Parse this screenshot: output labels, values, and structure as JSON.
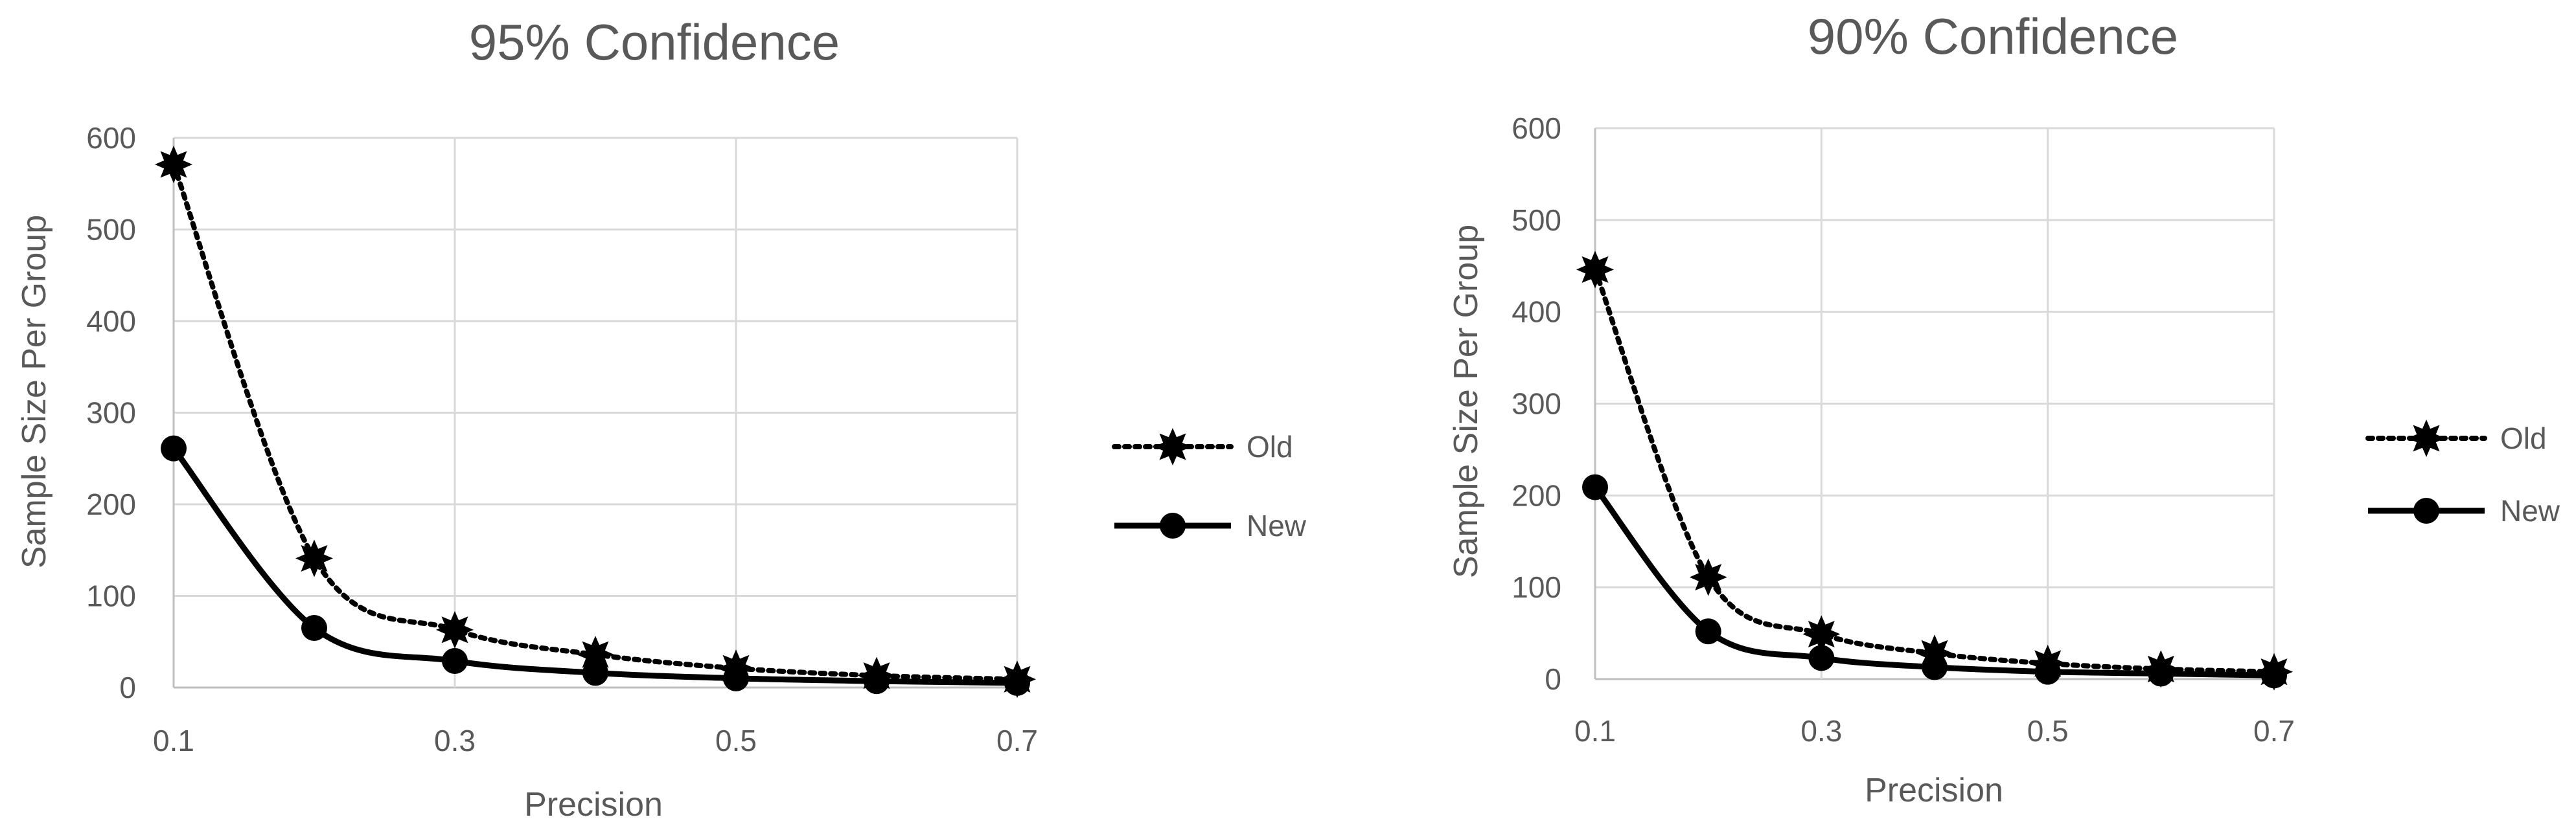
{
  "chart_data": [
    {
      "type": "line",
      "title": "95% Confidence",
      "xlabel": "Precision",
      "ylabel": "Sample Size Per Group",
      "x": [
        0.1,
        0.2,
        0.3,
        0.4,
        0.5,
        0.6,
        0.7
      ],
      "x_tick_labels": [
        "0.1",
        "0.3",
        "0.5",
        "0.7"
      ],
      "xlim": [
        0.1,
        0.7
      ],
      "y_tick_labels": [
        "0",
        "100",
        "200",
        "300",
        "400",
        "500",
        "600"
      ],
      "ylim": [
        0,
        600
      ],
      "grid": true,
      "smooth": true,
      "legend_position": "right",
      "series": [
        {
          "name": "Old",
          "line_style": "dotted",
          "marker": "star",
          "color": "#000000",
          "values": [
            571,
            141,
            63,
            36,
            21,
            13,
            9
          ]
        },
        {
          "name": "New",
          "line_style": "solid",
          "marker": "circle",
          "color": "#000000",
          "values": [
            261,
            65,
            29,
            16,
            10,
            7,
            5
          ]
        }
      ]
    },
    {
      "type": "line",
      "title": "90% Confidence",
      "xlabel": "Precision",
      "ylabel": "Sample Size Per Group",
      "x": [
        0.1,
        0.2,
        0.3,
        0.4,
        0.5,
        0.6,
        0.7
      ],
      "x_tick_labels": [
        "0.1",
        "0.3",
        "0.5",
        "0.7"
      ],
      "xlim": [
        0.1,
        0.7
      ],
      "y_tick_labels": [
        "0",
        "100",
        "200",
        "300",
        "400",
        "500",
        "600"
      ],
      "ylim": [
        0,
        600
      ],
      "grid": true,
      "smooth": true,
      "legend_position": "right",
      "series": [
        {
          "name": "Old",
          "line_style": "dotted",
          "marker": "star",
          "color": "#000000",
          "values": [
            446,
            111,
            49,
            28,
            17,
            11,
            8
          ]
        },
        {
          "name": "New",
          "line_style": "solid",
          "marker": "circle",
          "color": "#000000",
          "values": [
            209,
            52,
            23,
            13,
            8,
            6,
            4
          ]
        }
      ]
    }
  ]
}
